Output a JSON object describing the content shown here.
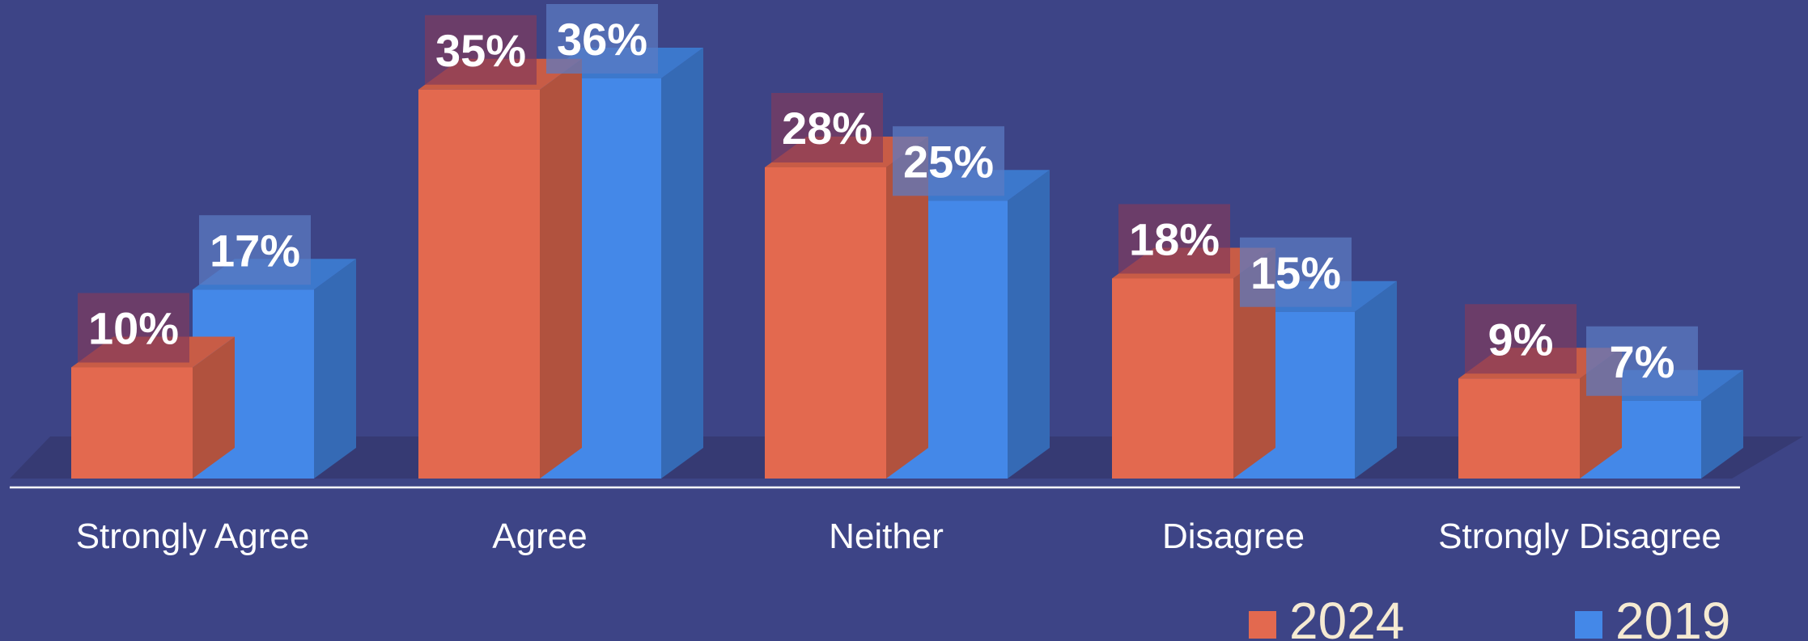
{
  "chart_data": {
    "type": "bar",
    "categories": [
      "Strongly Agree",
      "Agree",
      "Neither",
      "Disagree",
      "Strongly Disagree"
    ],
    "series": [
      {
        "name": "2024",
        "values": [
          10,
          35,
          28,
          18,
          9
        ],
        "labels": [
          "10%",
          "35%",
          "28%",
          "18%",
          "9%"
        ],
        "color": "#e3694f"
      },
      {
        "name": "2019",
        "values": [
          17,
          36,
          25,
          15,
          7
        ],
        "labels": [
          "17%",
          "36%",
          "25%",
          "15%",
          "7%"
        ],
        "color": "#4488e8"
      }
    ],
    "unit": "%",
    "style": "3d-column",
    "legend_position": "bottom-right",
    "background": "#3d4486"
  }
}
